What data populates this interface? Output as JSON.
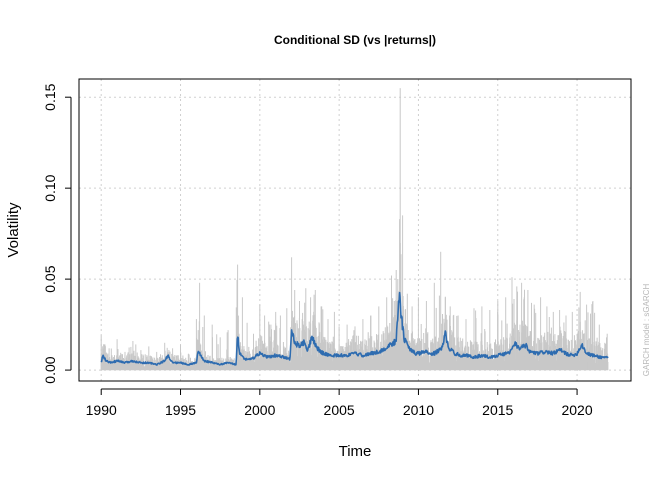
{
  "chart_data": {
    "type": "line",
    "title": "Conditional SD (vs |returns|)",
    "xlabel": "Time",
    "ylabel": "Volatility",
    "side_note": "GARCH model : sGARCH",
    "xlim": [
      1988.6,
      2023.4
    ],
    "ylim": [
      -0.006,
      0.16
    ],
    "x_ticks": [
      1990,
      1995,
      2000,
      2005,
      2010,
      2015,
      2020
    ],
    "y_ticks": [
      0.0,
      0.05,
      0.1,
      0.15
    ],
    "x_tick_labels": [
      "1990",
      "1995",
      "2000",
      "2005",
      "2010",
      "2015",
      "2020"
    ],
    "y_tick_labels": [
      "0.00",
      "0.05",
      "0.10",
      "0.15"
    ],
    "grid": true,
    "colors": {
      "abs_returns": "#c8c8c8",
      "conditional_sd": "#2e6cb0",
      "grid": "#d0d0d0",
      "note": "#b8b8b8"
    },
    "series": [
      {
        "name": "|returns|",
        "style": "bars",
        "x": [
          1990.0,
          1990.5,
          1991.0,
          1991.5,
          1992.0,
          1992.5,
          1993.0,
          1993.5,
          1994.0,
          1994.5,
          1995.0,
          1995.5,
          1996.0,
          1996.2,
          1996.5,
          1997.0,
          1997.5,
          1998.0,
          1998.6,
          1998.9,
          1999.2,
          1999.6,
          2000.0,
          2000.3,
          2000.7,
          2001.0,
          2001.3,
          2001.7,
          2002.0,
          2002.2,
          2002.5,
          2002.9,
          2003.2,
          2003.5,
          2003.9,
          2004.3,
          2004.7,
          2005.0,
          2005.5,
          2006.0,
          2006.5,
          2007.0,
          2007.5,
          2008.0,
          2008.3,
          2008.6,
          2008.85,
          2009.0,
          2009.3,
          2009.6,
          2010.0,
          2010.5,
          2011.0,
          2011.4,
          2011.7,
          2012.0,
          2012.5,
          2013.0,
          2013.5,
          2014.0,
          2014.5,
          2015.0,
          2015.5,
          2015.9,
          2016.2,
          2016.5,
          2016.9,
          2017.3,
          2017.7,
          2018.1,
          2018.5,
          2018.9,
          2019.3,
          2019.7,
          2020.2,
          2020.6,
          2021.0,
          2021.4,
          2021.9
        ],
        "values": [
          0.019,
          0.012,
          0.017,
          0.01,
          0.016,
          0.011,
          0.013,
          0.01,
          0.015,
          0.012,
          0.014,
          0.009,
          0.028,
          0.048,
          0.03,
          0.025,
          0.018,
          0.022,
          0.058,
          0.04,
          0.026,
          0.02,
          0.036,
          0.03,
          0.025,
          0.032,
          0.03,
          0.034,
          0.062,
          0.044,
          0.038,
          0.045,
          0.04,
          0.044,
          0.035,
          0.028,
          0.032,
          0.024,
          0.025,
          0.024,
          0.028,
          0.03,
          0.035,
          0.04,
          0.052,
          0.055,
          0.155,
          0.085,
          0.042,
          0.035,
          0.04,
          0.038,
          0.048,
          0.065,
          0.04,
          0.035,
          0.03,
          0.028,
          0.034,
          0.035,
          0.033,
          0.038,
          0.04,
          0.051,
          0.046,
          0.048,
          0.044,
          0.036,
          0.04,
          0.035,
          0.032,
          0.033,
          0.03,
          0.032,
          0.043,
          0.036,
          0.038,
          0.025,
          0.02
        ]
      },
      {
        "name": "Conditional SD",
        "style": "line",
        "x": [
          1990.0,
          1990.1,
          1990.3,
          1990.6,
          1991.0,
          1991.5,
          1992.0,
          1992.5,
          1993.0,
          1993.5,
          1994.0,
          1994.2,
          1994.5,
          1995.0,
          1995.5,
          1996.0,
          1996.1,
          1996.25,
          1996.5,
          1997.0,
          1997.5,
          1998.0,
          1998.5,
          1998.6,
          1998.7,
          1999.0,
          1999.5,
          2000.0,
          2000.5,
          2001.0,
          2001.5,
          2001.9,
          2002.0,
          2002.2,
          2002.5,
          2002.8,
          2003.0,
          2003.3,
          2003.6,
          2004.0,
          2004.5,
          2005.0,
          2005.5,
          2006.0,
          2006.5,
          2007.0,
          2007.5,
          2008.0,
          2008.3,
          2008.6,
          2008.8,
          2008.9,
          2009.1,
          2009.4,
          2009.8,
          2010.0,
          2010.4,
          2010.8,
          2011.0,
          2011.5,
          2011.7,
          2011.9,
          2012.3,
          2012.7,
          2013.0,
          2013.5,
          2014.0,
          2014.5,
          2015.0,
          2015.5,
          2015.8,
          2016.1,
          2016.4,
          2016.8,
          2017.0,
          2017.5,
          2018.0,
          2018.5,
          2018.9,
          2019.3,
          2019.7,
          2020.0,
          2020.3,
          2020.6,
          2021.0,
          2021.5,
          2021.9
        ],
        "values": [
          0.004,
          0.008,
          0.005,
          0.004,
          0.005,
          0.004,
          0.005,
          0.004,
          0.004,
          0.003,
          0.005,
          0.008,
          0.004,
          0.004,
          0.003,
          0.004,
          0.011,
          0.008,
          0.005,
          0.004,
          0.003,
          0.004,
          0.003,
          0.021,
          0.01,
          0.006,
          0.006,
          0.009,
          0.007,
          0.008,
          0.007,
          0.006,
          0.021,
          0.015,
          0.013,
          0.015,
          0.01,
          0.018,
          0.012,
          0.009,
          0.008,
          0.008,
          0.008,
          0.009,
          0.008,
          0.009,
          0.01,
          0.012,
          0.014,
          0.016,
          0.043,
          0.03,
          0.017,
          0.012,
          0.009,
          0.009,
          0.01,
          0.009,
          0.009,
          0.012,
          0.02,
          0.012,
          0.009,
          0.008,
          0.008,
          0.007,
          0.008,
          0.007,
          0.008,
          0.009,
          0.01,
          0.014,
          0.012,
          0.013,
          0.01,
          0.009,
          0.01,
          0.009,
          0.011,
          0.009,
          0.008,
          0.009,
          0.014,
          0.009,
          0.008,
          0.007,
          0.007
        ]
      }
    ]
  }
}
